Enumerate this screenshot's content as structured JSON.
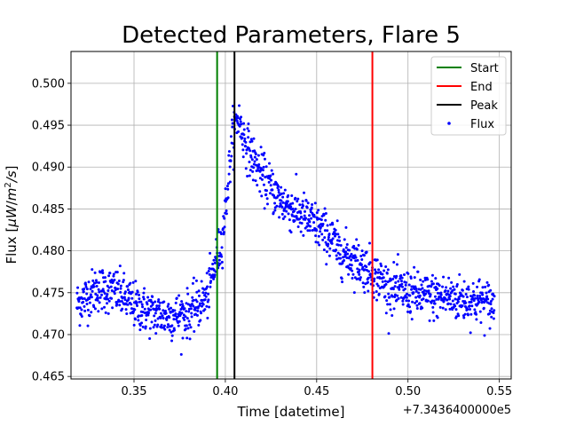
{
  "chart_data": {
    "type": "scatter",
    "title": "Detected Parameters, Flare 5",
    "xlabel": "Time [datetime]",
    "ylabel_main": "Flux [",
    "ylabel_mu": "μ",
    "ylabel_W": "W",
    "ylabel_slash": "/",
    "ylabel_m": "m",
    "ylabel_exp": "2",
    "ylabel_s": "/s",
    "ylabel_close": "]",
    "offset_label": "+7.3436400000e5",
    "xlim": [
      0.3155,
      0.5565
    ],
    "ylim": [
      0.4647,
      0.5038
    ],
    "x_ticks": [
      0.35,
      0.4,
      0.45,
      0.5,
      0.55
    ],
    "x_tick_labels": [
      "0.35",
      "0.40",
      "0.45",
      "0.50",
      "0.55"
    ],
    "y_ticks": [
      0.465,
      0.47,
      0.475,
      0.48,
      0.485,
      0.49,
      0.495,
      0.5
    ],
    "y_tick_labels": [
      "0.465",
      "0.470",
      "0.475",
      "0.480",
      "0.485",
      "0.490",
      "0.495",
      "0.500"
    ],
    "grid": true,
    "legend_position": "top-right",
    "vlines": [
      {
        "name": "Start",
        "x": 0.3955,
        "color": "#008000"
      },
      {
        "name": "End",
        "x": 0.4805,
        "color": "#ff0000"
      },
      {
        "name": "Peak",
        "x": 0.405,
        "color": "#000000"
      }
    ],
    "flux_series": {
      "name": "Flux",
      "color": "#0000ff",
      "x_start": 0.3187,
      "x_end": 0.5473,
      "profile": [
        [
          0.318,
          0.4735
        ],
        [
          0.33,
          0.4755
        ],
        [
          0.34,
          0.4752
        ],
        [
          0.35,
          0.4735
        ],
        [
          0.36,
          0.4725
        ],
        [
          0.37,
          0.4722
        ],
        [
          0.38,
          0.4725
        ],
        [
          0.39,
          0.4745
        ],
        [
          0.395,
          0.479
        ],
        [
          0.398,
          0.481
        ],
        [
          0.401,
          0.487
        ],
        [
          0.404,
          0.494
        ],
        [
          0.407,
          0.496
        ],
        [
          0.41,
          0.4935
        ],
        [
          0.415,
          0.491
        ],
        [
          0.42,
          0.489
        ],
        [
          0.425,
          0.4875
        ],
        [
          0.43,
          0.486
        ],
        [
          0.44,
          0.4845
        ],
        [
          0.45,
          0.483
        ],
        [
          0.458,
          0.4815
        ],
        [
          0.462,
          0.48
        ],
        [
          0.47,
          0.479
        ],
        [
          0.48,
          0.4775
        ],
        [
          0.49,
          0.4755
        ],
        [
          0.5,
          0.475
        ],
        [
          0.51,
          0.4745
        ],
        [
          0.52,
          0.4745
        ],
        [
          0.53,
          0.4742
        ],
        [
          0.54,
          0.474
        ],
        [
          0.5473,
          0.4735
        ]
      ],
      "spread": 0.0022
    }
  }
}
